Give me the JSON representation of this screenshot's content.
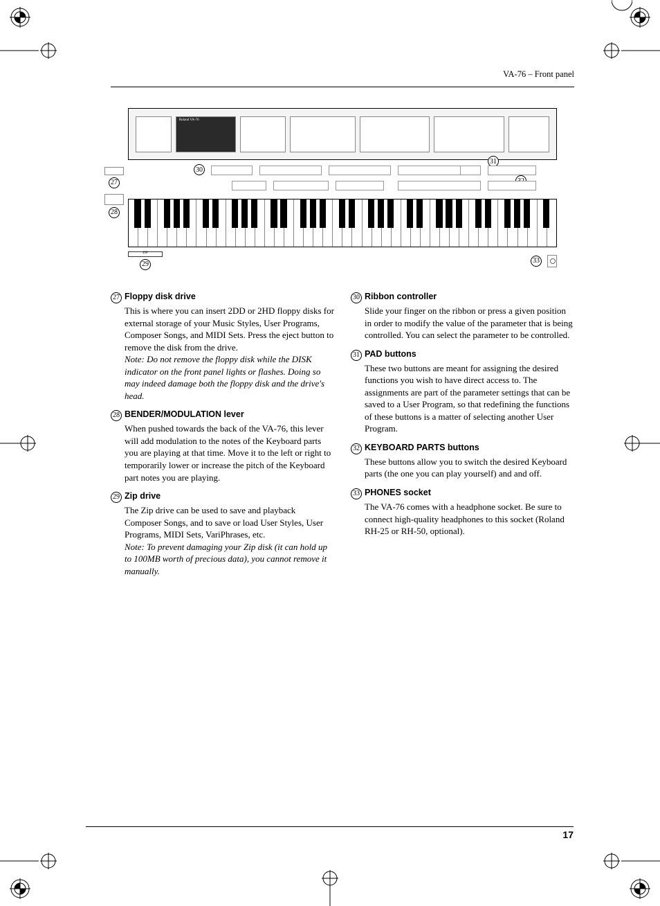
{
  "header": {
    "title": "VA-76 – Front panel"
  },
  "illustration": {
    "brand_label": "Roland VA-76",
    "callouts": {
      "c27": "27",
      "c28": "28",
      "c29": "29",
      "c30": "30",
      "c31": "31",
      "c32": "32",
      "c33": "33"
    }
  },
  "left_col": [
    {
      "num": "27",
      "title": "Floppy disk drive",
      "body": "This is where you can insert 2DD or 2HD floppy disks for external storage of your Music Styles, User Programs, Composer Songs, and MIDI Sets. Press the eject button to remove the disk from the drive.",
      "note": "Note: Do not remove the floppy disk while the DISK indicator on the front panel lights or flashes. Doing so may indeed damage both the floppy disk and the drive's head."
    },
    {
      "num": "28",
      "title": "BENDER/MODULATION lever",
      "body": "When pushed towards the back of the VA-76, this lever will add modulation to the notes of the Keyboard parts you are playing at that time. Move it to the left or right to temporarily lower or increase the pitch of the Keyboard part notes you are playing.",
      "note": ""
    },
    {
      "num": "29",
      "title": "Zip drive",
      "body": "The Zip drive can be used to save and playback Composer Songs, and to save or load User Styles, User Programs, MIDI Sets, VariPhrases, etc.",
      "note": "Note: To prevent damaging your Zip disk (it can hold up to 100MB worth of precious data), you cannot remove it manually."
    }
  ],
  "right_col": [
    {
      "num": "30",
      "title": "Ribbon controller",
      "body": "Slide your finger on the ribbon or press a given position in order to modify the value of the parameter that is being controlled. You can select the parameter to be controlled.",
      "note": ""
    },
    {
      "num": "31",
      "title": "PAD buttons",
      "body": "These two buttons are meant for assigning the desired functions you wish to have direct access to. The assignments are part of the parameter settings that can be saved to a User Program, so that redefining the functions of these buttons is a matter of selecting another User Program.",
      "note": ""
    },
    {
      "num": "32",
      "title": "KEYBOARD PARTS buttons",
      "body": "These buttons allow you to switch the desired Keyboard parts (the one you can play yourself) and and off.",
      "note": ""
    },
    {
      "num": "33",
      "title": "PHONES socket",
      "body": "The VA-76 comes with a headphone socket. Be sure to connect high-quality headphones to this socket (Roland RH-25 or RH-50, optional).",
      "note": ""
    }
  ],
  "page_number": "17"
}
